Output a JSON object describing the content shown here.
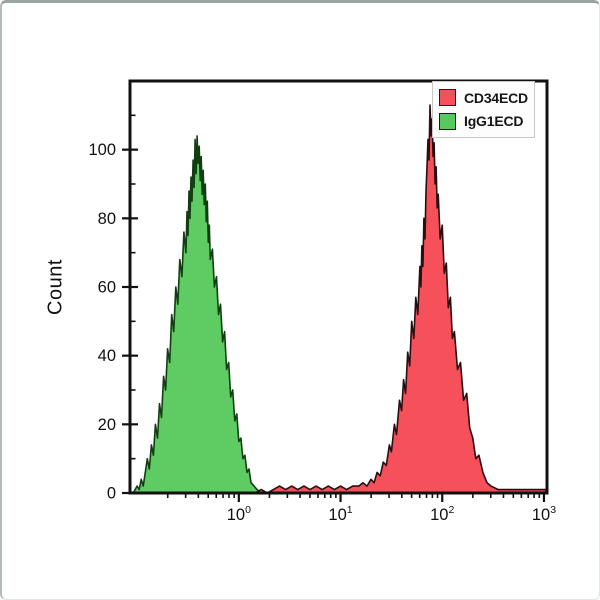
{
  "legend": {
    "entries": [
      {
        "label": "CD34ECD",
        "color": "#f4515c"
      },
      {
        "label": "IgG1ECD",
        "color": "#57c95e"
      }
    ]
  },
  "chart_data": {
    "type": "area",
    "title": "",
    "xlabel": "",
    "ylabel": "Count",
    "x_scale": "log10",
    "xlim_log": [
      -1.07,
      3.03
    ],
    "ylim": [
      0,
      120
    ],
    "y_major_ticks": [
      0,
      20,
      40,
      60,
      80,
      100
    ],
    "y_minor_step": 10,
    "x_tick_base": "10",
    "x_major_exponents": [
      0,
      1,
      2,
      3
    ],
    "grid": false,
    "legend_position": "top-right",
    "frame_color": "#111111",
    "series": [
      {
        "name": "CD34ECD",
        "fill": "#f6515a",
        "stroke": "#2a0e12",
        "points": [
          [
            0.16,
            0
          ],
          [
            0.22,
            1
          ],
          [
            0.28,
            0
          ],
          [
            0.34,
            1
          ],
          [
            0.4,
            2
          ],
          [
            0.46,
            1
          ],
          [
            0.52,
            2
          ],
          [
            0.58,
            1
          ],
          [
            0.64,
            2
          ],
          [
            0.7,
            1
          ],
          [
            0.76,
            2
          ],
          [
            0.82,
            1
          ],
          [
            0.88,
            2
          ],
          [
            0.94,
            1
          ],
          [
            1.0,
            2
          ],
          [
            1.06,
            1
          ],
          [
            1.12,
            2
          ],
          [
            1.18,
            2
          ],
          [
            1.22,
            3
          ],
          [
            1.26,
            2
          ],
          [
            1.3,
            4
          ],
          [
            1.33,
            3
          ],
          [
            1.36,
            6
          ],
          [
            1.39,
            5
          ],
          [
            1.42,
            9
          ],
          [
            1.45,
            8
          ],
          [
            1.48,
            14
          ],
          [
            1.5,
            12
          ],
          [
            1.53,
            20
          ],
          [
            1.55,
            17
          ],
          [
            1.58,
            27
          ],
          [
            1.6,
            24
          ],
          [
            1.62,
            33
          ],
          [
            1.64,
            29
          ],
          [
            1.66,
            41
          ],
          [
            1.68,
            37
          ],
          [
            1.7,
            50
          ],
          [
            1.72,
            45
          ],
          [
            1.74,
            57
          ],
          [
            1.76,
            52
          ],
          [
            1.78,
            66
          ],
          [
            1.79,
            60
          ],
          [
            1.8,
            72
          ],
          [
            1.81,
            66
          ],
          [
            1.82,
            80
          ],
          [
            1.83,
            74
          ],
          [
            1.84,
            88
          ],
          [
            1.85,
            95
          ],
          [
            1.86,
            103
          ],
          [
            1.87,
            97
          ],
          [
            1.88,
            113
          ],
          [
            1.89,
            104
          ],
          [
            1.9,
            109
          ],
          [
            1.91,
            98
          ],
          [
            1.92,
            102
          ],
          [
            1.93,
            90
          ],
          [
            1.94,
            95
          ],
          [
            1.95,
            83
          ],
          [
            1.96,
            87
          ],
          [
            1.98,
            74
          ],
          [
            2.0,
            78
          ],
          [
            2.02,
            64
          ],
          [
            2.04,
            67
          ],
          [
            2.06,
            54
          ],
          [
            2.08,
            57
          ],
          [
            2.1,
            45
          ],
          [
            2.12,
            47
          ],
          [
            2.15,
            36
          ],
          [
            2.18,
            38
          ],
          [
            2.21,
            27
          ],
          [
            2.24,
            29
          ],
          [
            2.27,
            19
          ],
          [
            2.3,
            16
          ],
          [
            2.33,
            10
          ],
          [
            2.36,
            11
          ],
          [
            2.4,
            6
          ],
          [
            2.44,
            3
          ],
          [
            2.48,
            2
          ],
          [
            2.55,
            1
          ],
          [
            2.65,
            1
          ],
          [
            2.75,
            1
          ],
          [
            2.85,
            1
          ],
          [
            2.95,
            1
          ],
          [
            3.02,
            1
          ]
        ]
      },
      {
        "name": "IgG1ECD",
        "fill": "#5ecb63",
        "stroke": "#123f12",
        "points": [
          [
            -1.04,
            0
          ],
          [
            -1.0,
            2
          ],
          [
            -0.98,
            1
          ],
          [
            -0.96,
            4
          ],
          [
            -0.94,
            2
          ],
          [
            -0.92,
            6
          ],
          [
            -0.9,
            10
          ],
          [
            -0.88,
            7
          ],
          [
            -0.86,
            14
          ],
          [
            -0.84,
            11
          ],
          [
            -0.82,
            20
          ],
          [
            -0.8,
            16
          ],
          [
            -0.78,
            26
          ],
          [
            -0.76,
            22
          ],
          [
            -0.74,
            34
          ],
          [
            -0.72,
            30
          ],
          [
            -0.7,
            42
          ],
          [
            -0.68,
            38
          ],
          [
            -0.66,
            52
          ],
          [
            -0.64,
            47
          ],
          [
            -0.62,
            60
          ],
          [
            -0.6,
            55
          ],
          [
            -0.58,
            68
          ],
          [
            -0.56,
            63
          ],
          [
            -0.54,
            76
          ],
          [
            -0.52,
            70
          ],
          [
            -0.51,
            82
          ],
          [
            -0.5,
            75
          ],
          [
            -0.49,
            88
          ],
          [
            -0.48,
            80
          ],
          [
            -0.47,
            92
          ],
          [
            -0.46,
            85
          ],
          [
            -0.45,
            97
          ],
          [
            -0.44,
            89
          ],
          [
            -0.43,
            103
          ],
          [
            -0.42,
            93
          ],
          [
            -0.41,
            104
          ],
          [
            -0.4,
            96
          ],
          [
            -0.39,
            101
          ],
          [
            -0.38,
            91
          ],
          [
            -0.37,
            98
          ],
          [
            -0.36,
            87
          ],
          [
            -0.35,
            94
          ],
          [
            -0.34,
            84
          ],
          [
            -0.33,
            90
          ],
          [
            -0.32,
            79
          ],
          [
            -0.31,
            85
          ],
          [
            -0.3,
            73
          ],
          [
            -0.29,
            78
          ],
          [
            -0.28,
            68
          ],
          [
            -0.26,
            71
          ],
          [
            -0.24,
            60
          ],
          [
            -0.22,
            63
          ],
          [
            -0.2,
            52
          ],
          [
            -0.18,
            55
          ],
          [
            -0.16,
            44
          ],
          [
            -0.14,
            47
          ],
          [
            -0.12,
            36
          ],
          [
            -0.1,
            38
          ],
          [
            -0.08,
            28
          ],
          [
            -0.06,
            30
          ],
          [
            -0.04,
            21
          ],
          [
            -0.02,
            23
          ],
          [
            0.0,
            15
          ],
          [
            0.02,
            16
          ],
          [
            0.04,
            10
          ],
          [
            0.06,
            11
          ],
          [
            0.08,
            6
          ],
          [
            0.1,
            7
          ],
          [
            0.12,
            3
          ],
          [
            0.15,
            2
          ],
          [
            0.18,
            1
          ],
          [
            0.22,
            0
          ]
        ]
      }
    ]
  }
}
